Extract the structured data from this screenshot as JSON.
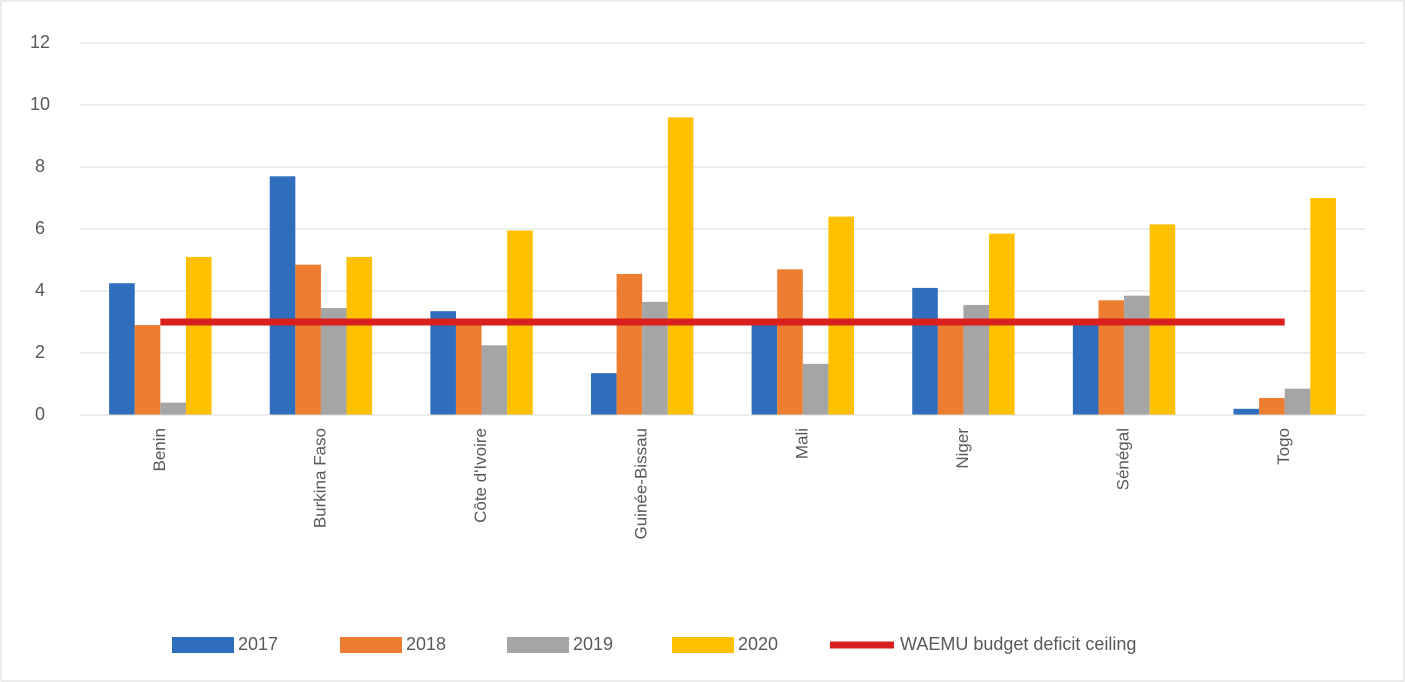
{
  "chart_data": {
    "type": "bar",
    "categories": [
      "Benin",
      "Burkina Faso",
      "Côte d'Ivoire",
      "Guinée-Bissau",
      "Mali",
      "Niger",
      "Sénégal",
      "Togo"
    ],
    "series": [
      {
        "name": "2017",
        "color": "#2e6ebd",
        "values": [
          4.25,
          7.7,
          3.35,
          1.35,
          2.9,
          4.1,
          2.9,
          0.2
        ]
      },
      {
        "name": "2018",
        "color": "#ed7d31",
        "values": [
          2.9,
          4.85,
          2.9,
          4.55,
          4.7,
          2.9,
          3.7,
          0.55
        ]
      },
      {
        "name": "2019",
        "color": "#a5a5a5",
        "values": [
          0.4,
          3.45,
          2.25,
          3.65,
          1.65,
          3.55,
          3.85,
          0.85
        ]
      },
      {
        "name": "2020",
        "color": "#ffc000",
        "values": [
          5.1,
          5.1,
          5.95,
          9.6,
          6.4,
          5.85,
          6.15,
          7.0
        ]
      },
      {
        "name": "WAEMU budget deficit ceiling",
        "color": "#d9201f",
        "type": "line",
        "values": [
          3,
          3,
          3,
          3,
          3,
          3,
          3,
          3
        ]
      }
    ],
    "ylim": [
      0,
      12
    ],
    "yticks": [
      0,
      2,
      4,
      6,
      8,
      10,
      12
    ],
    "grid": true,
    "legend": "bottom"
  }
}
